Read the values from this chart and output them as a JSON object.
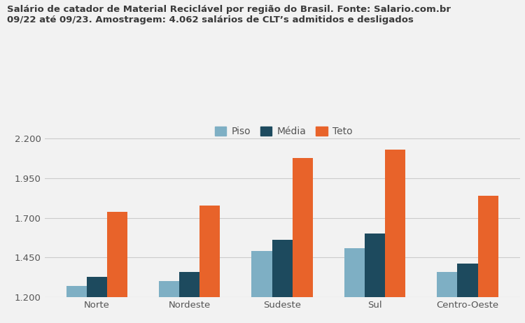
{
  "title_line1": "Salário de catador de Material Reciclável por região do Brasil. Fonte: Salario.com.br",
  "title_line2": "09/22 até 09/23. Amostragem: 4.062 salários de CLT’s admitidos e desligados",
  "regions": [
    "Norte",
    "Nordeste",
    "Sudeste",
    "Sul",
    "Centro-Oeste"
  ],
  "piso": [
    1270,
    1300,
    1490,
    1510,
    1360
  ],
  "media": [
    1330,
    1360,
    1560,
    1600,
    1410
  ],
  "teto": [
    1740,
    1780,
    2080,
    2130,
    1840
  ],
  "color_piso": "#7eafc4",
  "color_media": "#1d4a5e",
  "color_teto": "#e8632a",
  "legend_labels": [
    "Piso",
    "Média",
    "Teto"
  ],
  "ylim_min": 1200,
  "ylim_max": 2260,
  "yticks": [
    1200,
    1450,
    1700,
    1950,
    2200
  ],
  "background_color": "#f2f2f2",
  "bar_width": 0.22,
  "title_fontsize": 9.5,
  "tick_fontsize": 9.5,
  "legend_fontsize": 10
}
